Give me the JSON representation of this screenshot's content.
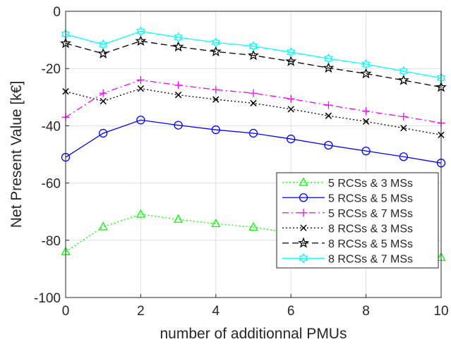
{
  "chart_data": {
    "type": "line",
    "xlabel": "number of additionnal PMUs",
    "ylabel": "Net Present Value [k€]",
    "xlim": [
      0,
      10
    ],
    "ylim": [
      -100,
      0
    ],
    "xticks": [
      "0",
      "2",
      "4",
      "6",
      "8",
      "10"
    ],
    "yticks": [
      "0",
      "-20",
      "-40",
      "-60",
      "-80",
      "-100"
    ],
    "grid": true,
    "legend_position": "bottom-right",
    "x": [
      0,
      1,
      2,
      3,
      4,
      5,
      6,
      7,
      8,
      9,
      10
    ],
    "series": [
      {
        "name": "5 RCSs & 3 MSs",
        "color": "#00ff00",
        "dash": "dotted",
        "marker": "triangle",
        "values": [
          -84,
          -75.3,
          -70.9,
          -72.7,
          -74.2,
          -75.4,
          -77.5,
          -79.6,
          -81.7,
          -83.8,
          -86
        ]
      },
      {
        "name": "5 RCSs & 5 MSs",
        "color": "#0000ff",
        "dash": "solid",
        "marker": "circle",
        "values": [
          -51,
          -42.6,
          -38,
          -39.8,
          -41.4,
          -42.6,
          -44.6,
          -46.8,
          -48.8,
          -50.8,
          -53
        ]
      },
      {
        "name": "5 RCSs & 7 MSs",
        "color": "#ff00ff",
        "dash": "dashdot",
        "marker": "plus",
        "values": [
          -37,
          -28.6,
          -24,
          -25.8,
          -27.4,
          -28.6,
          -30.6,
          -32.8,
          -34.9,
          -36.8,
          -39
        ]
      },
      {
        "name": "8 RCSs & 3 MSs",
        "color": "#000000",
        "dash": "dotted",
        "marker": "x",
        "values": [
          -28,
          -31.4,
          -27,
          -29.2,
          -30.8,
          -32.1,
          -34.2,
          -36.5,
          -38.5,
          -40.8,
          -43.2
        ]
      },
      {
        "name": "8 RCSs & 5 MSs",
        "color": "#000000",
        "dash": "dashed",
        "marker": "star",
        "values": [
          -11.2,
          -14.8,
          -10.4,
          -12.4,
          -14.1,
          -15.4,
          -17.5,
          -19.8,
          -21.8,
          -24.1,
          -26.5
        ]
      },
      {
        "name": "8 RCSs & 7 MSs",
        "color": "#00ffff",
        "dash": "solid",
        "marker": "hexagram",
        "values": [
          -8,
          -11.6,
          -7,
          -9.1,
          -10.9,
          -12.2,
          -14.3,
          -16.5,
          -18.5,
          -20.9,
          -23.3
        ]
      }
    ]
  }
}
